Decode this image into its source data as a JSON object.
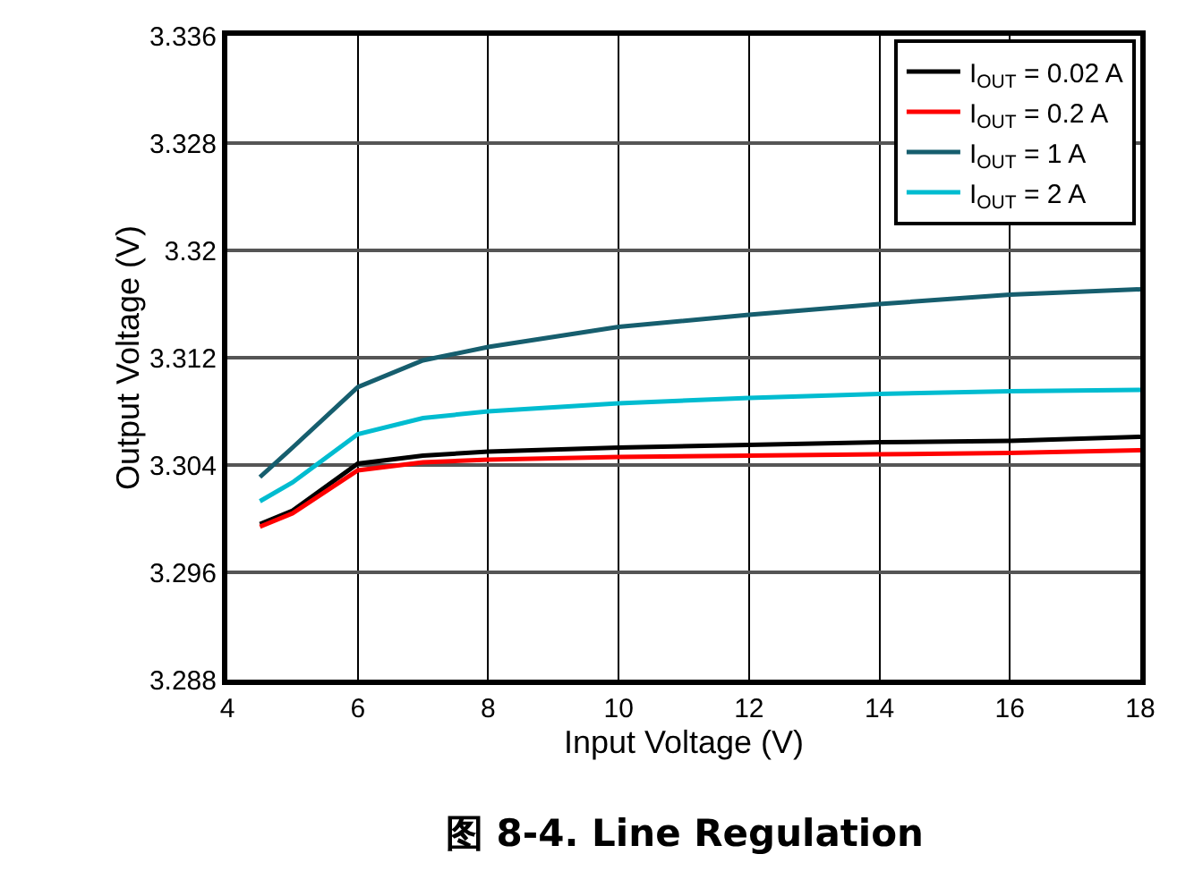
{
  "chart_data": {
    "type": "line",
    "title": "图 8-4. Line Regulation",
    "xlabel": "Input Voltage (V)",
    "ylabel": "Output Voltage (V)",
    "x": [
      4.5,
      5,
      6,
      7,
      8,
      10,
      12,
      14,
      16,
      18
    ],
    "series": [
      {
        "name": "I$_{OUT}$ = 0.02 A",
        "color": "#000000",
        "values": [
          3.2996,
          3.3006,
          3.3041,
          3.3047,
          3.305,
          3.3053,
          3.3055,
          3.3057,
          3.3058,
          3.3061
        ]
      },
      {
        "name": "I$_{OUT}$ = 0.2 A",
        "color": "#ff0000",
        "values": [
          3.2994,
          3.3004,
          3.3036,
          3.3042,
          3.3044,
          3.3046,
          3.3047,
          3.3048,
          3.3049,
          3.3051
        ]
      },
      {
        "name": "I$_{OUT}$ = 1 A",
        "color": "#165e6e",
        "values": [
          3.3031,
          3.3053,
          3.3098,
          3.3118,
          3.3128,
          3.3143,
          3.3152,
          3.316,
          3.3167,
          3.3171
        ]
      },
      {
        "name": "I$_{OUT}$ = 2 A",
        "color": "#00bcd0",
        "values": [
          3.3013,
          3.3027,
          3.3063,
          3.3075,
          3.308,
          3.3086,
          3.309,
          3.3093,
          3.3095,
          3.3096
        ]
      }
    ],
    "xlim": [
      4,
      18
    ],
    "xticks": [
      4,
      6,
      8,
      10,
      12,
      14,
      16,
      18
    ],
    "ylim": [
      3.288,
      3.336
    ],
    "yticks": [
      3.288,
      3.296,
      3.304,
      3.312,
      3.32,
      3.328,
      3.336
    ],
    "grid": true,
    "legend": "top right",
    "line_style": "solid",
    "marker": "none"
  }
}
